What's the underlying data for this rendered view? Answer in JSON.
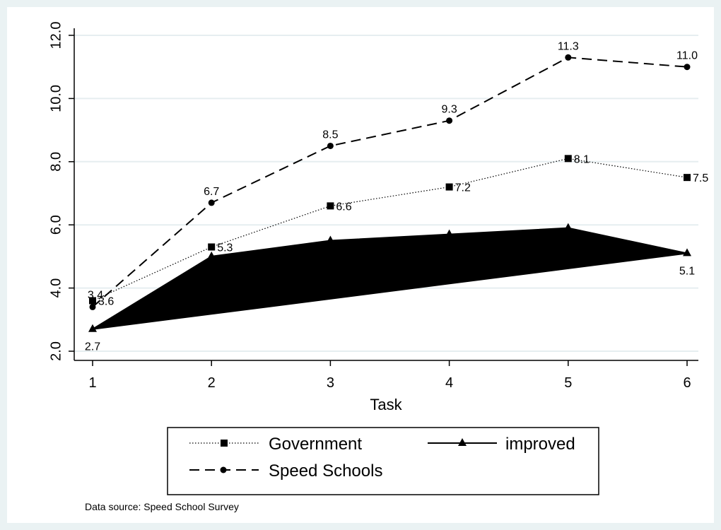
{
  "chart_data": {
    "type": "line",
    "x": [
      1,
      2,
      3,
      4,
      5,
      6
    ],
    "xlabel": "Task",
    "ylabel": "",
    "xlim": [
      1,
      6
    ],
    "ylim": [
      2.0,
      12.0
    ],
    "y_ticks": [
      "2.0",
      "4.0",
      "6.0",
      "8.0",
      "10.0",
      "12.0"
    ],
    "x_ticks": [
      "1",
      "2",
      "3",
      "4",
      "5",
      "6"
    ],
    "grid": "horizontal",
    "legend_position": "bottom",
    "series": [
      {
        "name": "Government",
        "style": "dotted",
        "marker": "square",
        "values": [
          3.6,
          5.3,
          6.6,
          7.2,
          8.1,
          7.5
        ],
        "labels": [
          "3.6",
          "5.3",
          "6.6",
          "7.2",
          "8.1",
          "7.5"
        ]
      },
      {
        "name": "improved",
        "style": "solid-filled",
        "marker": "triangle",
        "values": [
          2.7,
          5.0,
          5.5,
          5.7,
          5.9,
          5.1
        ],
        "labels": [
          "2.7",
          "",
          "",
          "",
          "",
          "5.1"
        ]
      },
      {
        "name": "Speed Schools",
        "style": "dashed",
        "marker": "circle",
        "values": [
          3.4,
          6.7,
          8.5,
          9.3,
          11.3,
          11.0
        ],
        "labels": [
          "3.4",
          "6.7",
          "8.5",
          "9.3",
          "11.3",
          "11.0"
        ]
      }
    ],
    "note": "Data source: Speed School Survey"
  },
  "colors": {
    "outer_background": "#eaf2f3",
    "plot_background": "#ffffff",
    "grid": "#e6eef0",
    "series": "#000000"
  }
}
